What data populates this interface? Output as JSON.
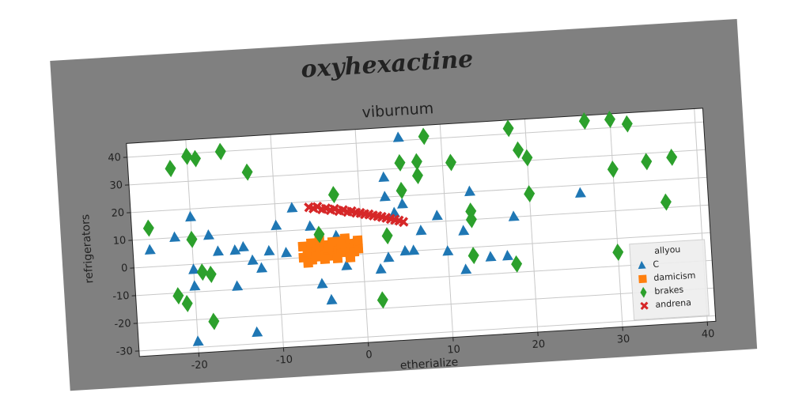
{
  "chart_data": {
    "type": "scatter",
    "suptitle": "oxyhexactine",
    "title": "viburnum",
    "xlabel": "etherialize",
    "ylabel": "refrigerators",
    "legend_title": "allyou",
    "legend": "lower right",
    "grid": true,
    "xlim": [
      -27,
      41
    ],
    "ylim": [
      -32,
      45
    ],
    "xticks": [
      -20,
      -10,
      0,
      10,
      20,
      30,
      40
    ],
    "yticks": [
      -30,
      -20,
      -10,
      0,
      10,
      20,
      30,
      40
    ],
    "series": [
      {
        "name": "C",
        "color": "#1f77b4",
        "marker": "triangle",
        "x": [
          -25,
          -22,
          -20,
          -18,
          -17,
          -15,
          -14,
          -13,
          -12,
          -10,
          -11,
          -9,
          -8,
          -6,
          -5,
          -4,
          -3,
          -2,
          -1,
          -20,
          -20,
          -15,
          -13,
          -20,
          2,
          3,
          3,
          3,
          4,
          5,
          5,
          5,
          6,
          7,
          9,
          10,
          12,
          12,
          13,
          15,
          17,
          18,
          26
        ],
        "y": [
          6,
          10,
          17,
          10,
          4,
          4,
          5,
          0,
          -3,
          12,
          3,
          2,
          18,
          11,
          -10,
          -16,
          7,
          -4,
          4,
          -2,
          -8,
          -9,
          -26,
          -28,
          -6,
          -2,
          27,
          20,
          14,
          0,
          17,
          41,
          0,
          7,
          12,
          -1,
          -8,
          6,
          20,
          -4,
          -4,
          10,
          17
        ]
      },
      {
        "name": "damicism",
        "color": "#ff7f0e",
        "marker": "square",
        "x": [
          -7,
          -6.5,
          -6,
          -5.5,
          -5,
          -4.5,
          -4,
          -3.5,
          -3,
          -2.5,
          -2,
          -1.5,
          -1,
          -0.5,
          -7,
          -6,
          -5,
          -4,
          -3,
          -2,
          -1,
          -6.5,
          -5.5,
          -4.5,
          -3.5,
          -2.5,
          -1.5,
          -0.5
        ],
        "y": [
          0,
          2,
          -1,
          3,
          1,
          4,
          0,
          2,
          5,
          1,
          3,
          0,
          4,
          2,
          4,
          5,
          6,
          3,
          -1,
          6,
          1,
          -2,
          0,
          -1,
          5,
          4,
          -1,
          5
        ]
      },
      {
        "name": "brakes",
        "color": "#2ca02c",
        "marker": "diamond",
        "x": [
          -25,
          -22,
          -20,
          -19,
          -16,
          -13,
          -20,
          -18,
          -19,
          -22,
          -21,
          -18,
          -3,
          -5,
          2,
          3,
          5,
          5,
          7,
          7,
          8,
          11,
          13,
          13,
          13,
          18,
          19,
          20,
          20,
          18,
          27,
          30,
          30,
          30,
          32,
          34,
          36,
          37
        ],
        "y": [
          14,
          35,
          39,
          38,
          40,
          32,
          9,
          -4,
          -3,
          -11,
          -14,
          -21,
          22,
          8,
          -17,
          6,
          32,
          22,
          32,
          27,
          41,
          31,
          13,
          10,
          -3,
          42,
          34,
          31,
          18,
          -7,
          43,
          -5,
          25,
          43,
          41,
          27,
          12,
          28
        ]
      },
      {
        "name": "andrena",
        "color": "#d62728",
        "marker": "x",
        "x": [
          -6,
          -5.5,
          -5,
          -4.5,
          -4,
          -3.5,
          -3,
          -2.5,
          -2,
          -1.5,
          -1,
          -0.5,
          0,
          0.5,
          1,
          1.5,
          2,
          2.5,
          3,
          3.5,
          4,
          4.5,
          5
        ],
        "y": [
          18,
          17.5,
          18,
          17,
          17.2,
          16.5,
          16.8,
          16,
          16.2,
          15.5,
          15.6,
          15,
          14.8,
          14.3,
          14.1,
          13.6,
          13.3,
          12.9,
          12.5,
          12,
          11.6,
          11.2,
          10.6
        ]
      }
    ]
  }
}
